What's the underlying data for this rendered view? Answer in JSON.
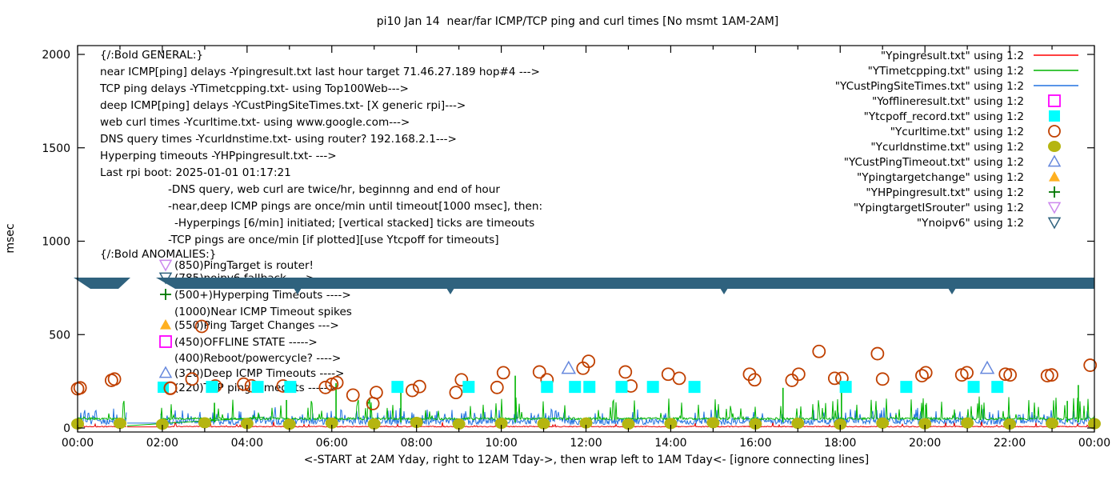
{
  "chart_data": {
    "type": "line+scatter (gnuplot time-series)",
    "title": "pi10 Jan 14  near/far ICMP/TCP ping and curl times [No msmt 1AM-2AM]",
    "xlabel": "<-START at 2AM Yday, right to 12AM Tday->, then wrap left to 1AM Tday<- [ignore connecting lines]",
    "ylabel": "msec",
    "ylim": [
      0,
      2000
    ],
    "y_ticks": [
      0,
      500,
      1000,
      1500,
      2000
    ],
    "x_range_hours": [
      0,
      24
    ],
    "x_tick_labels": [
      "00:00",
      "02:00",
      "04:00",
      "06:00",
      "08:00",
      "10:00",
      "12:00",
      "14:00",
      "16:00",
      "18:00",
      "20:00",
      "22:00",
      "00:00"
    ],
    "grid": "off",
    "legend_position": "top-right-inside",
    "no_measurement_gap_hours": [
      1.17,
      1.95
    ],
    "series": [
      {
        "label": "\"Ypingresult.txt\" using 1:2",
        "style": "line",
        "color": "#e60000",
        "legend_color": "#ff0000",
        "noise": {
          "baseline_ms": 5,
          "jitter_ms": 5,
          "spike_p": 0.05,
          "spike_ms": 26
        }
      },
      {
        "label": "\"YTimetcpping.txt\" using 1:2",
        "style": "line",
        "color": "#00b400",
        "noise": {
          "baseline_ms": 44,
          "jitter_ms": 12,
          "spike_p": 0.08,
          "spike_ms": 120,
          "rare_p": 0.01,
          "rare_ms": 110
        },
        "tall_spikes": [
          [
            3.23,
            135
          ],
          [
            4.93,
            150
          ],
          [
            6.1,
            240
          ],
          [
            7.63,
            240
          ],
          [
            10.33,
            280
          ],
          [
            16.65,
            215
          ],
          [
            18.03,
            235
          ],
          [
            20.02,
            125
          ],
          [
            23.36,
            145
          ],
          [
            23.62,
            230
          ]
        ],
        "connecting_line": [
          [
            1.17,
            12
          ],
          [
            4.4,
            58
          ]
        ]
      },
      {
        "label": "\"YCustPingSiteTimes.txt\" using 1:2",
        "style": "line",
        "color": "#2272e0",
        "noise": {
          "baseline_ms": 18,
          "jitter_ms": 32,
          "spike_p": 0.22,
          "spike_ms": 62
        }
      },
      {
        "label": "\"Yofflineresult.txt\" using 1:2",
        "style": "square-open",
        "color": "#ff00ff",
        "points": []
      },
      {
        "label": "\"Ytcpoff_record.txt\" using 1:2",
        "style": "square-filled",
        "color": "#00ffff",
        "value_ms": 220,
        "times_h": [
          3.17,
          4.25,
          5.02,
          7.55,
          9.23,
          11.08,
          11.74,
          12.08,
          12.84,
          13.58,
          14.56,
          18.13,
          19.56,
          21.15,
          21.71
        ]
      },
      {
        "label": "\"Ycurltime.txt\" using 1:2",
        "style": "circle-open",
        "color": "#c04000",
        "points": [
          [
            0.0,
            210
          ],
          [
            0.06,
            215
          ],
          [
            0.8,
            255
          ],
          [
            0.87,
            262
          ],
          [
            2.19,
            212
          ],
          [
            2.7,
            262
          ],
          [
            2.93,
            544
          ],
          [
            3.25,
            225
          ],
          [
            3.92,
            235
          ],
          [
            4.1,
            226
          ],
          [
            4.85,
            225
          ],
          [
            5.85,
            217
          ],
          [
            6.0,
            234
          ],
          [
            6.12,
            243
          ],
          [
            6.5,
            176
          ],
          [
            6.97,
            131
          ],
          [
            7.05,
            190
          ],
          [
            7.9,
            201
          ],
          [
            8.07,
            222
          ],
          [
            8.93,
            190
          ],
          [
            9.06,
            258
          ],
          [
            9.9,
            217
          ],
          [
            10.05,
            296
          ],
          [
            10.9,
            300
          ],
          [
            11.08,
            258
          ],
          [
            11.93,
            320
          ],
          [
            12.06,
            357
          ],
          [
            12.93,
            300
          ],
          [
            13.06,
            225
          ],
          [
            13.94,
            288
          ],
          [
            14.2,
            266
          ],
          [
            15.86,
            288
          ],
          [
            15.98,
            258
          ],
          [
            16.86,
            255
          ],
          [
            17.02,
            288
          ],
          [
            17.5,
            410
          ],
          [
            17.87,
            266
          ],
          [
            18.04,
            266
          ],
          [
            18.88,
            398
          ],
          [
            19.0,
            262
          ],
          [
            19.93,
            280
          ],
          [
            20.02,
            296
          ],
          [
            20.87,
            284
          ],
          [
            20.99,
            296
          ],
          [
            21.9,
            288
          ],
          [
            22.01,
            284
          ],
          [
            22.89,
            280
          ],
          [
            22.99,
            284
          ],
          [
            23.9,
            336
          ]
        ]
      },
      {
        "label": "\"Ycurldnstime.txt\" using 1:2",
        "style": "circle-filled",
        "color": "#b5b510",
        "points": [
          [
            0,
            22
          ],
          [
            1,
            25
          ],
          [
            2,
            20
          ],
          [
            3,
            28
          ],
          [
            4,
            24
          ],
          [
            5,
            20
          ],
          [
            6,
            26
          ],
          [
            7,
            22
          ],
          [
            8,
            30
          ],
          [
            9,
            21
          ],
          [
            10,
            25
          ],
          [
            11,
            23
          ],
          [
            12,
            27
          ],
          [
            13,
            21
          ],
          [
            14,
            24
          ],
          [
            15,
            28
          ],
          [
            16,
            22
          ],
          [
            17,
            25
          ],
          [
            18,
            20
          ],
          [
            19,
            26
          ],
          [
            20,
            23
          ],
          [
            21,
            27
          ],
          [
            22,
            21
          ],
          [
            23,
            25
          ],
          [
            24,
            23
          ]
        ]
      },
      {
        "label": "\"YCustPingTimeout.txt\" using 1:2",
        "style": "triangle-up-open",
        "color": "#6688dd",
        "points": [
          [
            11.59,
            320
          ],
          [
            21.47,
            320
          ]
        ]
      },
      {
        "label": "\"Ypingtargetchange\" using 1:2",
        "style": "triangle-up-filled",
        "color": "#ffb020",
        "points": []
      },
      {
        "label": "\"YHPpingresult.txt\" using 1:2",
        "style": "plus",
        "color": "#007700",
        "points": []
      },
      {
        "label": "\"YpingtargetISrouter\" using 1:2",
        "style": "triangle-down-open",
        "color": "#cc88ee",
        "points": []
      },
      {
        "label": "\"Ynoipv6\" using 1:2",
        "style": "triangle-down-open",
        "color": "#2f627e",
        "band": {
          "value_ms": 785,
          "segments_h": [
            [
              -0.1,
              1.25
            ],
            [
              1.85,
              24.05
            ]
          ],
          "note": "stacked down-triangles form a solid band"
        }
      }
    ],
    "annotations": {
      "general": [
        {
          "x": 125,
          "y": 73,
          "text": "{/:Bold GENERAL:}"
        },
        {
          "x": 125,
          "y": 94,
          "text": "near ICMP[ping] delays -Ypingresult.txt last hour target 71.46.27.189 hop#4 --->"
        },
        {
          "x": 125,
          "y": 115,
          "text": "TCP ping delays -YTimetcpping.txt- using Top100Web--->"
        },
        {
          "x": 125,
          "y": 136,
          "text": "deep ICMP[ping] delays -YCustPingSiteTimes.txt- [X generic rpi]--->"
        },
        {
          "x": 125,
          "y": 157,
          "text": "web curl times -Ycurltime.txt- using www.google.com--->"
        },
        {
          "x": 125,
          "y": 178,
          "text": "DNS query times -Ycurldnstime.txt- using router? 192.168.2.1--->"
        },
        {
          "x": 125,
          "y": 199,
          "text": "Hyperping timeouts -YHPpingresult.txt- --->"
        },
        {
          "x": 125,
          "y": 220,
          "text": "Last rpi boot: 2025-01-01 01:17:21"
        },
        {
          "x": 210,
          "y": 241,
          "text": "-DNS query, web curl are twice/hr, beginnng and end of hour"
        },
        {
          "x": 210,
          "y": 262,
          "text": "-near,deep ICMP pings are once/min until timeout[1000 msec], then:"
        },
        {
          "x": 218,
          "y": 283,
          "text": "-Hyperpings [6/min] initiated; [vertical stacked] ticks are timeouts"
        },
        {
          "x": 210,
          "y": 304,
          "text": "-TCP pings are once/min [if plotted][use Ytcpoff for timeouts]"
        }
      ],
      "anomalies_header": {
        "x": 125,
        "y": 322,
        "text": "{/:Bold ANOMALIES:}"
      },
      "anomalies": [
        {
          "y": 336,
          "marker": "triangle-down-open",
          "color": "#cc88ee",
          "text": "(850)PingTarget is router!"
        },
        {
          "y": 352,
          "marker": "triangle-down-open",
          "color": "#2f627e",
          "text": "(785)noipv6 fallback ---->",
          "obscured_by_band": true
        },
        {
          "y": 373,
          "marker": "plus",
          "color": "#007700",
          "text": "(500+)Hyperping Timeouts ---->"
        },
        {
          "y": 394,
          "marker": "none",
          "color": "",
          "text": "(1000)Near ICMP Timeout spikes"
        },
        {
          "y": 411,
          "marker": "triangle-up-filled",
          "color": "#ffb020",
          "text": "(550)Ping Target Changes --->"
        },
        {
          "y": 432,
          "marker": "square-open",
          "color": "#ff00ff",
          "text": "(450)OFFLINE STATE ----->"
        },
        {
          "y": 452,
          "marker": "none",
          "color": "",
          "text": "(400)Reboot/powercycle? ---->"
        },
        {
          "y": 471,
          "marker": "triangle-up-open",
          "color": "#6688dd",
          "text": "(320)Deep ICMP Timeouts ---->"
        },
        {
          "y": 489,
          "marker": "square-plus-circle",
          "color": "#00ffff",
          "color2": "#c04000",
          "text": "(220)TCP ping Timeouts ----->"
        }
      ]
    },
    "legend": [
      {
        "label": "\"Ypingresult.txt\" using 1:2",
        "swatch": "line",
        "color": "#ff0000"
      },
      {
        "label": "\"YTimetcpping.txt\" using 1:2",
        "swatch": "line",
        "color": "#00b400"
      },
      {
        "label": "\"YCustPingSiteTimes.txt\" using 1:2",
        "swatch": "line",
        "color": "#2272e0"
      },
      {
        "label": "\"Yofflineresult.txt\" using 1:2",
        "swatch": "square-open",
        "color": "#ff00ff"
      },
      {
        "label": "\"Ytcpoff_record.txt\" using 1:2",
        "swatch": "square-filled",
        "color": "#00ffff"
      },
      {
        "label": "\"Ycurltime.txt\" using 1:2",
        "swatch": "circle-open",
        "color": "#c04000"
      },
      {
        "label": "\"Ycurldnstime.txt\" using 1:2",
        "swatch": "circle-filled",
        "color": "#b5b510"
      },
      {
        "label": "\"YCustPingTimeout.txt\" using 1:2",
        "swatch": "triangle-up-open",
        "color": "#6688dd"
      },
      {
        "label": "\"Ypingtargetchange\" using 1:2",
        "swatch": "triangle-up-filled",
        "color": "#ffb020"
      },
      {
        "label": "\"YHPpingresult.txt\" using 1:2",
        "swatch": "plus",
        "color": "#007700"
      },
      {
        "label": "\"YpingtargetISrouter\" using 1:2",
        "swatch": "triangle-down-open",
        "color": "#cc88ee"
      },
      {
        "label": "\"Ynoipv6\" using 1:2",
        "swatch": "triangle-down-open",
        "color": "#2f627e"
      }
    ]
  }
}
